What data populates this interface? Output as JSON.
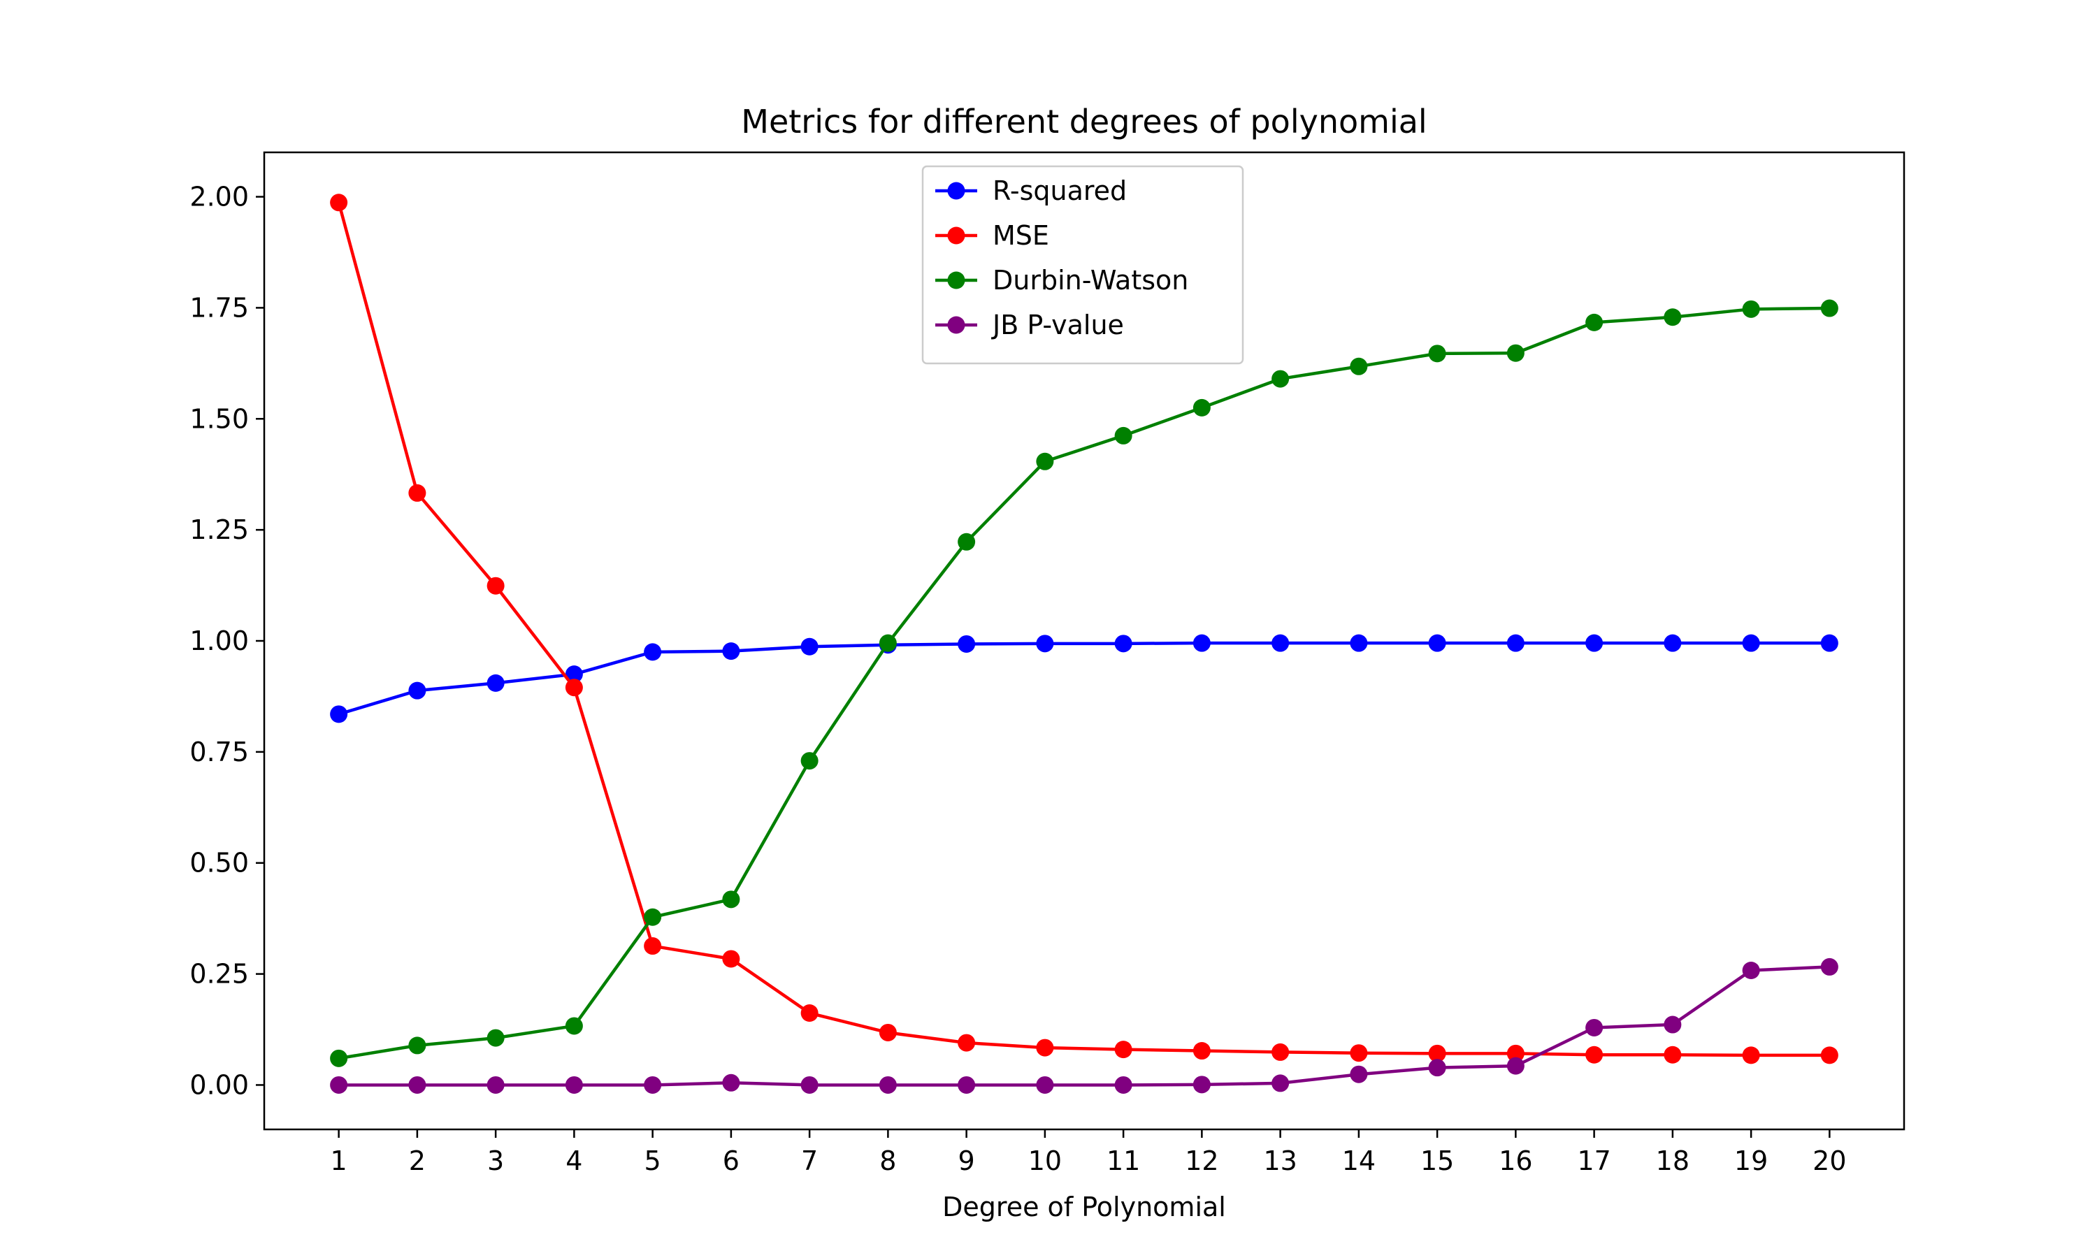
{
  "chart_data": {
    "type": "line",
    "title": "Metrics for different degrees of polynomial",
    "xlabel": "Degree of Polynomial",
    "ylabel": "",
    "x": [
      1,
      2,
      3,
      4,
      5,
      6,
      7,
      8,
      9,
      10,
      11,
      12,
      13,
      14,
      15,
      16,
      17,
      18,
      19,
      20
    ],
    "xlim": [
      0.05,
      20.95
    ],
    "ylim": [
      -0.1,
      2.1
    ],
    "yticks": [
      0.0,
      0.25,
      0.5,
      0.75,
      1.0,
      1.25,
      1.5,
      1.75,
      2.0
    ],
    "ytick_labels": [
      "0.00",
      "0.25",
      "0.50",
      "0.75",
      "1.00",
      "1.25",
      "1.50",
      "1.75",
      "2.00"
    ],
    "xtick_labels": [
      "1",
      "2",
      "3",
      "4",
      "5",
      "6",
      "7",
      "8",
      "9",
      "10",
      "11",
      "12",
      "13",
      "14",
      "15",
      "16",
      "17",
      "18",
      "19",
      "20"
    ],
    "grid": false,
    "legend_position": "upper-center",
    "series": [
      {
        "name": "R-squared",
        "color": "#0000ff",
        "values": [
          0.835,
          0.888,
          0.905,
          0.925,
          0.975,
          0.977,
          0.987,
          0.991,
          0.993,
          0.994,
          0.994,
          0.995,
          0.995,
          0.995,
          0.995,
          0.995,
          0.995,
          0.995,
          0.995,
          0.995
        ]
      },
      {
        "name": "MSE",
        "color": "#ff0000",
        "values": [
          1.987,
          1.333,
          1.124,
          0.895,
          0.313,
          0.284,
          0.162,
          0.118,
          0.095,
          0.084,
          0.08,
          0.077,
          0.074,
          0.072,
          0.071,
          0.071,
          0.068,
          0.068,
          0.067,
          0.067
        ]
      },
      {
        "name": "Durbin-Watson",
        "color": "#008000",
        "values": [
          0.06,
          0.089,
          0.106,
          0.133,
          0.378,
          0.418,
          0.73,
          0.995,
          1.223,
          1.404,
          1.462,
          1.525,
          1.59,
          1.618,
          1.647,
          1.648,
          1.717,
          1.729,
          1.747,
          1.749
        ]
      },
      {
        "name": "JB P-value",
        "color": "#800080",
        "values": [
          0.0,
          0.0,
          0.0,
          0.0,
          0.0,
          0.005,
          0.0,
          0.0,
          0.0,
          0.0,
          0.0,
          0.001,
          0.004,
          0.024,
          0.039,
          0.043,
          0.129,
          0.136,
          0.258,
          0.266
        ]
      }
    ]
  }
}
